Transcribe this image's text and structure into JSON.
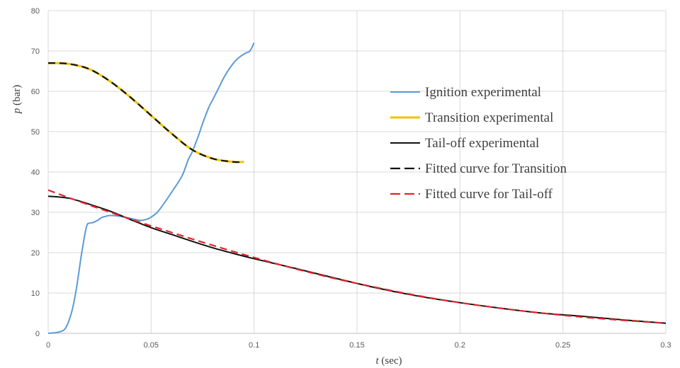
{
  "chart_data": {
    "type": "line",
    "title": "",
    "xlabel_var": "t",
    "xlabel_unit": "(sec)",
    "ylabel_var": "p",
    "ylabel_unit": "(bar)",
    "xlim": [
      0,
      0.3
    ],
    "ylim": [
      0,
      80
    ],
    "xticks": [
      0,
      0.05,
      0.1,
      0.15,
      0.2,
      0.25,
      0.3
    ],
    "xtick_labels": [
      "0",
      "0.05",
      "0.1",
      "0.15",
      "0.2",
      "0.25",
      "0.3"
    ],
    "yticks": [
      0,
      10,
      20,
      30,
      40,
      50,
      60,
      70,
      80
    ],
    "ytick_labels": [
      "0",
      "10",
      "20",
      "30",
      "40",
      "50",
      "60",
      "70",
      "80"
    ],
    "grid": true,
    "legend_position": "right",
    "series": [
      {
        "name": "Ignition experimental",
        "color": "#5b9bd5",
        "dash": "solid",
        "x": [
          0,
          0.005,
          0.008,
          0.01,
          0.012,
          0.014,
          0.016,
          0.018,
          0.019,
          0.02,
          0.022,
          0.024,
          0.026,
          0.028,
          0.03,
          0.035,
          0.04,
          0.045,
          0.048,
          0.05,
          0.053,
          0.056,
          0.06,
          0.065,
          0.068,
          0.07,
          0.073,
          0.075,
          0.078,
          0.08,
          0.083,
          0.086,
          0.09,
          0.093,
          0.096,
          0.098,
          0.1
        ],
        "y": [
          0,
          0.3,
          1.0,
          3.0,
          6.5,
          12,
          19,
          25,
          27,
          27.3,
          27.5,
          28,
          28.7,
          29,
          29.2,
          29,
          28.5,
          28,
          28.3,
          28.8,
          30,
          32,
          35,
          39,
          43,
          45,
          49,
          52,
          56,
          58,
          61,
          64,
          67,
          68.5,
          69.5,
          70,
          72
        ]
      },
      {
        "name": "Transition experimental",
        "color": "#f2c200",
        "dash": "solid",
        "x": [
          0,
          0.01,
          0.02,
          0.03,
          0.04,
          0.05,
          0.06,
          0.07,
          0.08,
          0.09,
          0.095
        ],
        "y": [
          67,
          66.8,
          65.5,
          62.5,
          58.5,
          54,
          49.5,
          45.5,
          43.3,
          42.5,
          42.5
        ]
      },
      {
        "name": "Tail-off experimental",
        "color": "#111111",
        "dash": "solid",
        "x": [
          0,
          0.01,
          0.02,
          0.03,
          0.04,
          0.05,
          0.06,
          0.07,
          0.08,
          0.09,
          0.1,
          0.12,
          0.14,
          0.16,
          0.18,
          0.2,
          0.22,
          0.24,
          0.26,
          0.28,
          0.3
        ],
        "y": [
          34,
          33.5,
          32,
          30.3,
          28.2,
          26.2,
          24.5,
          22.8,
          21.2,
          19.8,
          18.5,
          16.1,
          13.6,
          11.2,
          9.2,
          7.6,
          6.2,
          5.0,
          4.2,
          3.3,
          2.5
        ]
      },
      {
        "name": "Fitted curve for Transition",
        "color": "#111111",
        "dash": "dashed",
        "x": [
          0,
          0.01,
          0.02,
          0.03,
          0.04,
          0.05,
          0.06,
          0.07,
          0.08,
          0.09,
          0.095
        ],
        "y": [
          67,
          66.8,
          65.5,
          62.5,
          58.5,
          54,
          49.5,
          45.5,
          43.3,
          42.5,
          42.5
        ]
      },
      {
        "name": "Fitted curve for Tail-off",
        "color": "#e3242b",
        "dash": "dashed",
        "x": [
          0,
          0.02,
          0.04,
          0.06,
          0.08,
          0.1,
          0.12,
          0.14,
          0.16,
          0.18,
          0.2,
          0.22,
          0.24,
          0.26,
          0.28,
          0.3
        ],
        "y": [
          35.5,
          31.8,
          28.3,
          25.0,
          21.8,
          18.8,
          16.0,
          13.5,
          11.3,
          9.3,
          7.6,
          6.2,
          5.0,
          4.0,
          3.2,
          2.5
        ]
      }
    ]
  }
}
